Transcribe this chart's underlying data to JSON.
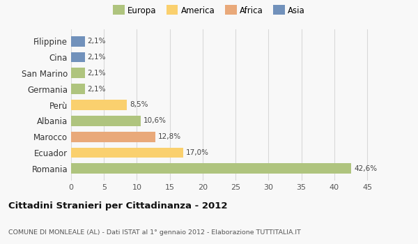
{
  "categories": [
    "Filippine",
    "Cina",
    "San Marino",
    "Germania",
    "Perù",
    "Albania",
    "Marocco",
    "Ecuador",
    "Romania"
  ],
  "values": [
    2.1,
    2.1,
    2.1,
    2.1,
    8.5,
    10.6,
    12.8,
    17.0,
    42.6
  ],
  "labels": [
    "2,1%",
    "2,1%",
    "2,1%",
    "2,1%",
    "8,5%",
    "10,6%",
    "12,8%",
    "17,0%",
    "42,6%"
  ],
  "colors": [
    "#7191bb",
    "#7191bb",
    "#afc47e",
    "#afc47e",
    "#fad06e",
    "#afc47e",
    "#e9a97a",
    "#fad06e",
    "#afc47e"
  ],
  "xlim": [
    0,
    47
  ],
  "xticks": [
    0,
    5,
    10,
    15,
    20,
    25,
    30,
    35,
    40,
    45
  ],
  "legend_items": [
    {
      "label": "Europa",
      "color": "#afc47e"
    },
    {
      "label": "America",
      "color": "#fad06e"
    },
    {
      "label": "Africa",
      "color": "#e9a97a"
    },
    {
      "label": "Asia",
      "color": "#7191bb"
    }
  ],
  "title": "Cittadini Stranieri per Cittadinanza - 2012",
  "subtitle": "COMUNE DI MONLEALE (AL) - Dati ISTAT al 1° gennaio 2012 - Elaborazione TUTTITALIA.IT",
  "background_color": "#f8f8f8",
  "grid_color": "#d8d8d8",
  "bar_height": 0.65
}
